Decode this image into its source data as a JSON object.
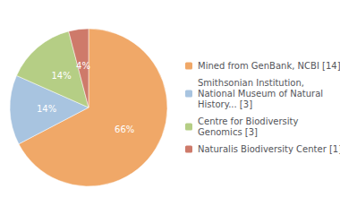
{
  "chart_data": {
    "type": "pie",
    "categories": [
      "Mined from GenBank, NCBI [14]",
      "Smithsonian Institution,\nNational Museum of Natural\nHistory... [3]",
      "Centre for Biodiversity\nGenomics [3]",
      "Naturalis Biodiversity Center [1]"
    ],
    "values": [
      66,
      14,
      14,
      4
    ],
    "value_labels": [
      "66%",
      "14%",
      "14%",
      "4%"
    ],
    "colors": [
      "#F0A868",
      "#A8C4E0",
      "#B5CE85",
      "#CE7A6A"
    ],
    "data_labels": true,
    "legend": "right"
  }
}
